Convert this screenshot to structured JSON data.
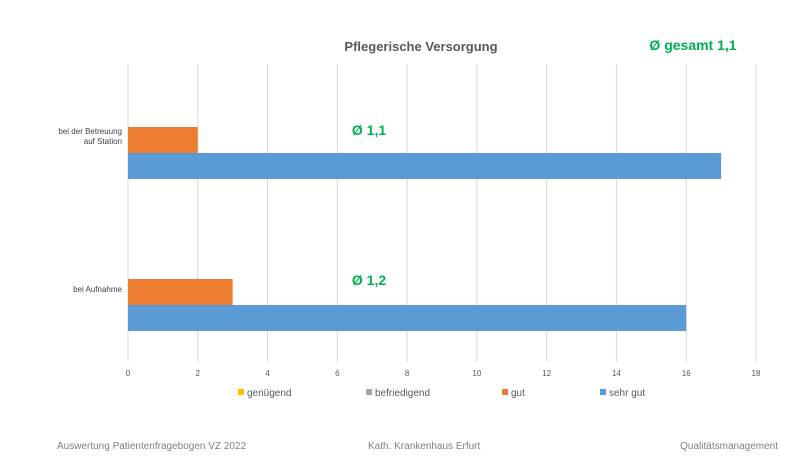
{
  "chart_data": {
    "type": "bar",
    "orientation": "horizontal",
    "title": "Pflegerische Versorgung",
    "overall_average": "Ø gesamt 1,1",
    "categories": [
      {
        "lines": [
          "bei der Betreuung",
          "auf Station"
        ],
        "average": "Ø 1,1"
      },
      {
        "lines": [
          "bei Aufnahme"
        ],
        "average": "Ø 1,2"
      }
    ],
    "series": [
      {
        "name": "genügend",
        "color": "#ffc000",
        "values": [
          0,
          0
        ]
      },
      {
        "name": "befriedigend",
        "color": "#a5a5a5",
        "values": [
          0,
          0
        ]
      },
      {
        "name": "gut",
        "color": "#ed7d31",
        "values": [
          2,
          3
        ]
      },
      {
        "name": "sehr gut",
        "color": "#5b9bd5",
        "values": [
          17,
          16
        ]
      }
    ],
    "xlim": [
      0,
      18
    ],
    "xticks": [
      0,
      2,
      4,
      6,
      8,
      10,
      12,
      14,
      16,
      18
    ],
    "grid": true,
    "legend_position": "bottom"
  },
  "footer": {
    "left": "Auswertung Patientenfragebogen VZ 2022",
    "center": "Kath. Krankenhaus Erfurt",
    "right": "Qualitätsmanagement"
  }
}
